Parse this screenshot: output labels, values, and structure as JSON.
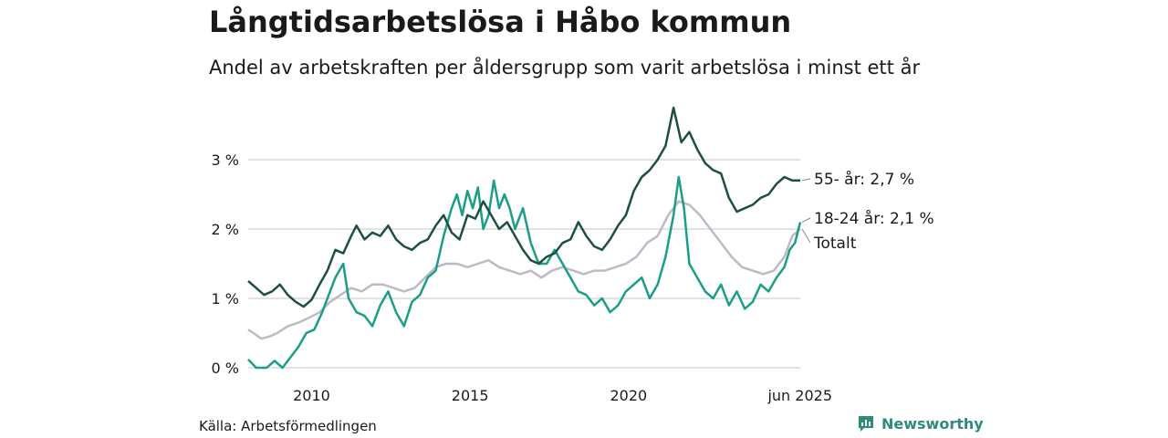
{
  "title": "Långtidsarbetslösa i Håbo kommun",
  "subtitle": "Andel av arbetskraften per åldersgrupp som varit arbetslösa i minst ett år",
  "source": "Källa: Arbetsförmedlingen",
  "brand": {
    "name": "Newsworthy",
    "icon": "newsworthy-logo-icon",
    "color": "#2e8b7a"
  },
  "chart_data": {
    "type": "line",
    "title": "Långtidsarbetslösa i Håbo kommun",
    "subtitle": "Andel av arbetskraften per åldersgrupp som varit arbetslösa i minst ett år",
    "x_range": [
      "2008-01",
      "2025-06"
    ],
    "ylim": [
      0,
      3.8
    ],
    "y_ticks": [
      {
        "value": 0,
        "label": "0 %"
      },
      {
        "value": 1,
        "label": "1 %"
      },
      {
        "value": 2,
        "label": "2 %"
      },
      {
        "value": 3,
        "label": "3 %"
      }
    ],
    "x_ticks": [
      {
        "date": "2010-01",
        "label": "2010"
      },
      {
        "date": "2015-01",
        "label": "2015"
      },
      {
        "date": "2020-01",
        "label": "2020"
      },
      {
        "date": "2025-06",
        "label": "jun 2025"
      }
    ],
    "grid": "horizontal",
    "series": [
      {
        "name": "Totalt",
        "label": "Totalt",
        "color": "#bdbac6",
        "points": [
          [
            "2008-01",
            0.55
          ],
          [
            "2008-03",
            0.5
          ],
          [
            "2008-06",
            0.42
          ],
          [
            "2008-09",
            0.45
          ],
          [
            "2008-12",
            0.5
          ],
          [
            "2009-04",
            0.6
          ],
          [
            "2009-08",
            0.65
          ],
          [
            "2009-12",
            0.72
          ],
          [
            "2010-04",
            0.8
          ],
          [
            "2010-08",
            0.95
          ],
          [
            "2010-12",
            1.05
          ],
          [
            "2011-04",
            1.15
          ],
          [
            "2011-08",
            1.1
          ],
          [
            "2011-12",
            1.2
          ],
          [
            "2012-04",
            1.2
          ],
          [
            "2012-08",
            1.15
          ],
          [
            "2012-12",
            1.1
          ],
          [
            "2013-04",
            1.15
          ],
          [
            "2013-08",
            1.3
          ],
          [
            "2013-12",
            1.45
          ],
          [
            "2014-04",
            1.5
          ],
          [
            "2014-08",
            1.5
          ],
          [
            "2014-12",
            1.45
          ],
          [
            "2015-04",
            1.5
          ],
          [
            "2015-08",
            1.55
          ],
          [
            "2015-12",
            1.45
          ],
          [
            "2016-04",
            1.4
          ],
          [
            "2016-08",
            1.35
          ],
          [
            "2016-12",
            1.4
          ],
          [
            "2017-04",
            1.3
          ],
          [
            "2017-08",
            1.4
          ],
          [
            "2017-12",
            1.45
          ],
          [
            "2018-04",
            1.4
          ],
          [
            "2018-08",
            1.35
          ],
          [
            "2018-12",
            1.4
          ],
          [
            "2019-04",
            1.4
          ],
          [
            "2019-08",
            1.45
          ],
          [
            "2019-12",
            1.5
          ],
          [
            "2020-04",
            1.6
          ],
          [
            "2020-08",
            1.8
          ],
          [
            "2020-12",
            1.9
          ],
          [
            "2021-04",
            2.2
          ],
          [
            "2021-08",
            2.4
          ],
          [
            "2021-12",
            2.35
          ],
          [
            "2022-04",
            2.2
          ],
          [
            "2022-08",
            2.0
          ],
          [
            "2022-12",
            1.8
          ],
          [
            "2023-04",
            1.6
          ],
          [
            "2023-08",
            1.45
          ],
          [
            "2023-12",
            1.4
          ],
          [
            "2024-04",
            1.35
          ],
          [
            "2024-08",
            1.4
          ],
          [
            "2024-12",
            1.6
          ],
          [
            "2025-03",
            1.9
          ],
          [
            "2025-06",
            2.0
          ]
        ]
      },
      {
        "name": "18-24 år",
        "label": "18-24 år: 2,1 %",
        "color": "#1b9e87",
        "points": [
          [
            "2008-01",
            0.12
          ],
          [
            "2008-04",
            0.0
          ],
          [
            "2008-08",
            0.0
          ],
          [
            "2008-11",
            0.1
          ],
          [
            "2009-02",
            0.0
          ],
          [
            "2009-05",
            0.15
          ],
          [
            "2009-08",
            0.3
          ],
          [
            "2009-11",
            0.5
          ],
          [
            "2010-02",
            0.55
          ],
          [
            "2010-05",
            0.8
          ],
          [
            "2010-08",
            1.1
          ],
          [
            "2010-10",
            1.3
          ],
          [
            "2011-01",
            1.5
          ],
          [
            "2011-03",
            1.0
          ],
          [
            "2011-06",
            0.8
          ],
          [
            "2011-09",
            0.75
          ],
          [
            "2011-12",
            0.6
          ],
          [
            "2012-03",
            0.9
          ],
          [
            "2012-06",
            1.1
          ],
          [
            "2012-09",
            0.8
          ],
          [
            "2012-12",
            0.6
          ],
          [
            "2013-03",
            0.95
          ],
          [
            "2013-06",
            1.05
          ],
          [
            "2013-09",
            1.3
          ],
          [
            "2013-12",
            1.4
          ],
          [
            "2014-03",
            1.9
          ],
          [
            "2014-06",
            2.3
          ],
          [
            "2014-08",
            2.5
          ],
          [
            "2014-10",
            2.2
          ],
          [
            "2014-12",
            2.55
          ],
          [
            "2015-02",
            2.3
          ],
          [
            "2015-04",
            2.6
          ],
          [
            "2015-06",
            2.0
          ],
          [
            "2015-08",
            2.2
          ],
          [
            "2015-10",
            2.7
          ],
          [
            "2015-12",
            2.3
          ],
          [
            "2016-02",
            2.5
          ],
          [
            "2016-04",
            2.3
          ],
          [
            "2016-06",
            2.0
          ],
          [
            "2016-09",
            2.3
          ],
          [
            "2016-12",
            1.8
          ],
          [
            "2017-03",
            1.5
          ],
          [
            "2017-06",
            1.5
          ],
          [
            "2017-09",
            1.7
          ],
          [
            "2017-12",
            1.5
          ],
          [
            "2018-03",
            1.3
          ],
          [
            "2018-06",
            1.1
          ],
          [
            "2018-09",
            1.05
          ],
          [
            "2018-12",
            0.9
          ],
          [
            "2019-03",
            1.0
          ],
          [
            "2019-06",
            0.8
          ],
          [
            "2019-09",
            0.9
          ],
          [
            "2019-12",
            1.1
          ],
          [
            "2020-03",
            1.2
          ],
          [
            "2020-06",
            1.3
          ],
          [
            "2020-09",
            1.0
          ],
          [
            "2020-12",
            1.2
          ],
          [
            "2021-03",
            1.6
          ],
          [
            "2021-06",
            2.2
          ],
          [
            "2021-08",
            2.75
          ],
          [
            "2021-10",
            2.3
          ],
          [
            "2021-12",
            1.5
          ],
          [
            "2022-03",
            1.3
          ],
          [
            "2022-06",
            1.1
          ],
          [
            "2022-09",
            1.0
          ],
          [
            "2022-12",
            1.2
          ],
          [
            "2023-03",
            0.9
          ],
          [
            "2023-06",
            1.1
          ],
          [
            "2023-09",
            0.85
          ],
          [
            "2023-12",
            0.95
          ],
          [
            "2024-03",
            1.2
          ],
          [
            "2024-06",
            1.1
          ],
          [
            "2024-09",
            1.3
          ],
          [
            "2024-12",
            1.45
          ],
          [
            "2025-02",
            1.7
          ],
          [
            "2025-04",
            1.8
          ],
          [
            "2025-06",
            2.1
          ]
        ]
      },
      {
        "name": "55- år",
        "label": "55- år: 2,7 %",
        "color": "#1d4f44",
        "points": [
          [
            "2008-01",
            1.25
          ],
          [
            "2008-04",
            1.15
          ],
          [
            "2008-07",
            1.05
          ],
          [
            "2008-10",
            1.1
          ],
          [
            "2009-01",
            1.2
          ],
          [
            "2009-04",
            1.05
          ],
          [
            "2009-07",
            0.95
          ],
          [
            "2009-10",
            0.88
          ],
          [
            "2010-01",
            0.98
          ],
          [
            "2010-04",
            1.2
          ],
          [
            "2010-07",
            1.4
          ],
          [
            "2010-10",
            1.7
          ],
          [
            "2011-01",
            1.65
          ],
          [
            "2011-04",
            1.9
          ],
          [
            "2011-06",
            2.05
          ],
          [
            "2011-09",
            1.85
          ],
          [
            "2011-12",
            1.95
          ],
          [
            "2012-03",
            1.9
          ],
          [
            "2012-06",
            2.05
          ],
          [
            "2012-09",
            1.85
          ],
          [
            "2012-12",
            1.75
          ],
          [
            "2013-03",
            1.7
          ],
          [
            "2013-06",
            1.8
          ],
          [
            "2013-09",
            1.85
          ],
          [
            "2013-12",
            2.05
          ],
          [
            "2014-03",
            2.2
          ],
          [
            "2014-06",
            1.95
          ],
          [
            "2014-09",
            1.85
          ],
          [
            "2014-12",
            2.2
          ],
          [
            "2015-03",
            2.15
          ],
          [
            "2015-06",
            2.4
          ],
          [
            "2015-09",
            2.2
          ],
          [
            "2015-12",
            2.0
          ],
          [
            "2016-03",
            2.1
          ],
          [
            "2016-06",
            1.9
          ],
          [
            "2016-09",
            1.7
          ],
          [
            "2016-12",
            1.55
          ],
          [
            "2017-03",
            1.5
          ],
          [
            "2017-06",
            1.6
          ],
          [
            "2017-09",
            1.65
          ],
          [
            "2017-12",
            1.8
          ],
          [
            "2018-03",
            1.85
          ],
          [
            "2018-06",
            2.1
          ],
          [
            "2018-09",
            1.9
          ],
          [
            "2018-12",
            1.75
          ],
          [
            "2019-03",
            1.7
          ],
          [
            "2019-06",
            1.85
          ],
          [
            "2019-09",
            2.05
          ],
          [
            "2019-12",
            2.2
          ],
          [
            "2020-03",
            2.55
          ],
          [
            "2020-06",
            2.75
          ],
          [
            "2020-09",
            2.85
          ],
          [
            "2020-12",
            3.0
          ],
          [
            "2021-03",
            3.2
          ],
          [
            "2021-06",
            3.75
          ],
          [
            "2021-09",
            3.25
          ],
          [
            "2021-12",
            3.4
          ],
          [
            "2022-03",
            3.15
          ],
          [
            "2022-06",
            2.95
          ],
          [
            "2022-09",
            2.85
          ],
          [
            "2022-12",
            2.8
          ],
          [
            "2023-03",
            2.45
          ],
          [
            "2023-06",
            2.25
          ],
          [
            "2023-09",
            2.3
          ],
          [
            "2023-12",
            2.35
          ],
          [
            "2024-03",
            2.45
          ],
          [
            "2024-06",
            2.5
          ],
          [
            "2024-09",
            2.65
          ],
          [
            "2024-12",
            2.75
          ],
          [
            "2025-03",
            2.7
          ],
          [
            "2025-06",
            2.7
          ]
        ]
      }
    ]
  }
}
